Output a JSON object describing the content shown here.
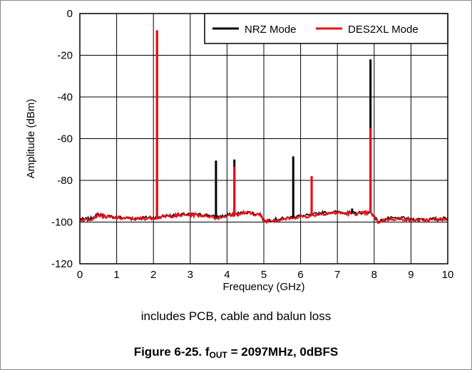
{
  "chart_data": {
    "type": "line",
    "xlabel": "Frequency (GHz)",
    "ylabel": "Amplitude (dBm)",
    "xlim": [
      0,
      10
    ],
    "ylim": [
      -120,
      0
    ],
    "x_ticks": [
      "0",
      "1",
      "2",
      "3",
      "4",
      "5",
      "6",
      "7",
      "8",
      "9",
      "10"
    ],
    "y_ticks": [
      "0",
      "-20",
      "-40",
      "-60",
      "-80",
      "-100",
      "-120"
    ],
    "grid": true,
    "legend_position": "top-right",
    "noise_floor": [
      [
        0.0,
        -98.5
      ],
      [
        0.1,
        -99.0
      ],
      [
        0.3,
        -98.5
      ],
      [
        0.5,
        -96.5
      ],
      [
        0.7,
        -97.5
      ],
      [
        1.0,
        -98.0
      ],
      [
        1.5,
        -98.5
      ],
      [
        2.0,
        -98.0
      ],
      [
        2.5,
        -97.0
      ],
      [
        3.0,
        -96.5
      ],
      [
        3.5,
        -97.0
      ],
      [
        3.7,
        -98.0
      ],
      [
        4.0,
        -97.0
      ],
      [
        4.2,
        -96.5
      ],
      [
        4.5,
        -95.5
      ],
      [
        4.9,
        -96.5
      ],
      [
        5.0,
        -99.5
      ],
      [
        5.3,
        -99.0
      ],
      [
        5.6,
        -98.5
      ],
      [
        5.9,
        -97.5
      ],
      [
        6.3,
        -97.0
      ],
      [
        6.5,
        -96.0
      ],
      [
        7.0,
        -95.5
      ],
      [
        7.5,
        -96.0
      ],
      [
        7.9,
        -95.5
      ],
      [
        8.0,
        -97.5
      ],
      [
        8.1,
        -100.0
      ],
      [
        8.4,
        -98.5
      ],
      [
        8.8,
        -98.5
      ],
      [
        9.0,
        -99.0
      ],
      [
        9.5,
        -99.0
      ],
      [
        10.0,
        -98.5
      ]
    ],
    "series": [
      {
        "name": "NRZ Mode",
        "color": "#000000",
        "spurs": [
          [
            2.097,
            -8.5
          ],
          [
            3.7,
            -70.5
          ],
          [
            4.2,
            -70.0
          ],
          [
            5.8,
            -68.5
          ],
          [
            7.4,
            -93.5
          ],
          [
            7.9,
            -22.0
          ]
        ]
      },
      {
        "name": "DES2XL Mode",
        "color": "#e8101a",
        "spurs": [
          [
            2.097,
            -8.0
          ],
          [
            4.2,
            -73.5
          ],
          [
            6.3,
            -78.0
          ],
          [
            7.9,
            -55.0
          ]
        ]
      }
    ]
  },
  "note": "includes PCB, cable and balun loss",
  "caption": {
    "prefix": "Figure 6-25. f",
    "subscript": "OUT",
    "suffix": " = 2097MHz, 0dBFS"
  }
}
